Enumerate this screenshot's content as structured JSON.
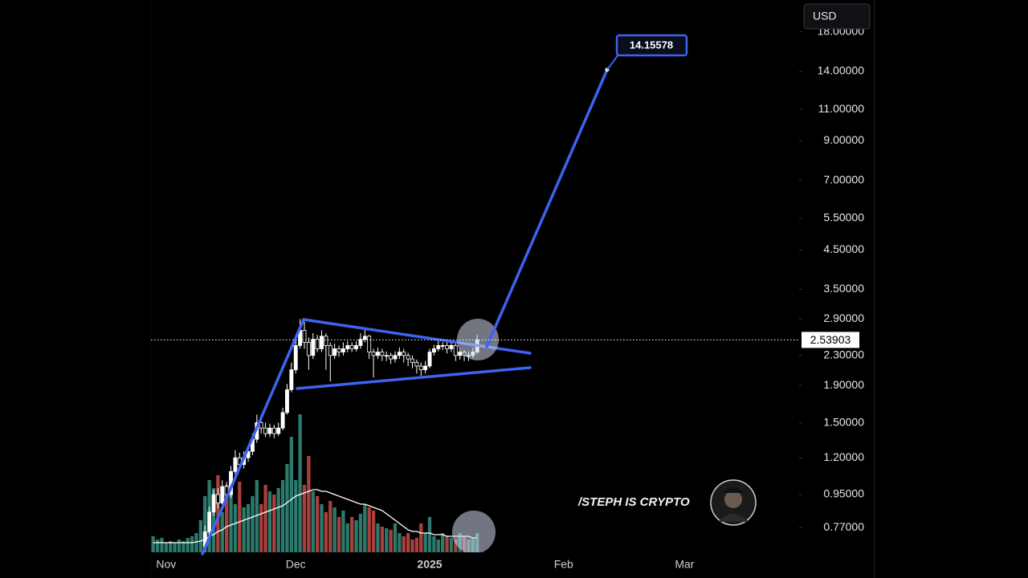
{
  "chart_data": {
    "type": "candlestick",
    "currency": "USD",
    "watermark": "/STEPH IS CRYPTO",
    "log_scale": true,
    "ylim": [
      0.658,
      22.04
    ],
    "yticks": [
      {
        "value": 18,
        "label": "18.00000"
      },
      {
        "value": 14,
        "label": "14.00000"
      },
      {
        "value": 11,
        "label": "11.00000"
      },
      {
        "value": 9,
        "label": "9.00000"
      },
      {
        "value": 7,
        "label": "7.00000"
      },
      {
        "value": 5.5,
        "label": "5.50000"
      },
      {
        "value": 4.5,
        "label": "4.50000"
      },
      {
        "value": 3.5,
        "label": "3.50000"
      },
      {
        "value": 2.9,
        "label": "2.90000"
      },
      {
        "value": 2.3,
        "label": "2.30000"
      },
      {
        "value": 1.9,
        "label": "1.90000"
      },
      {
        "value": 1.5,
        "label": "1.50000"
      },
      {
        "value": 1.2,
        "label": "1.20000"
      },
      {
        "value": 0.95,
        "label": "0.95000"
      },
      {
        "value": 0.77,
        "label": "0.77000"
      }
    ],
    "last_price": 2.53903,
    "target": 14.15578,
    "candle_color": "#ffffff",
    "drawing_color": "#3d63f0",
    "volume_colors": {
      "up": "#2b7a6b",
      "down": "#a8413d"
    },
    "volume_lim": [
      0,
      100
    ],
    "categories": [
      null,
      null,
      null,
      "Nov",
      null,
      null,
      null,
      null,
      null,
      null,
      null,
      null,
      null,
      null,
      null,
      null,
      null,
      null,
      null,
      null,
      null,
      null,
      null,
      null,
      null,
      null,
      null,
      null,
      null,
      null,
      null,
      null,
      null,
      "Dec",
      null,
      null,
      null,
      null,
      null,
      null,
      null,
      null,
      null,
      null,
      null,
      null,
      null,
      null,
      null,
      null,
      null,
      null,
      null,
      null,
      null,
      null,
      null,
      null,
      null,
      null,
      null,
      null,
      null,
      null,
      "2025",
      null,
      null,
      null,
      null,
      null,
      null,
      null,
      null,
      null,
      null,
      null,
      null,
      null,
      null,
      null,
      null,
      null,
      null,
      null,
      null,
      null,
      null,
      null,
      null,
      null,
      null,
      null,
      null,
      null,
      null,
      "Feb",
      null,
      null,
      null,
      null,
      null,
      null,
      null,
      null,
      null,
      null,
      null,
      null,
      null,
      null,
      null,
      null,
      null,
      null,
      null,
      null,
      null,
      null,
      null,
      null,
      null,
      null,
      null,
      "Mar",
      null,
      null,
      null,
      null,
      null,
      null,
      null,
      null,
      null,
      null,
      null,
      null,
      null,
      null,
      null,
      null,
      null,
      null,
      null,
      null,
      null,
      null,
      null,
      null,
      null,
      null
    ],
    "open": [
      null,
      null,
      null,
      null,
      null,
      null,
      null,
      null,
      null,
      null,
      null,
      null,
      0.68,
      0.75,
      0.85,
      0.95,
      0.9,
      1.0,
      0.95,
      1.1,
      1.2,
      1.15,
      1.2,
      1.25,
      1.35,
      1.5,
      1.45,
      1.4,
      1.45,
      1.4,
      1.45,
      1.6,
      1.85,
      2.1,
      2.45,
      2.7,
      2.5,
      2.3,
      2.55,
      2.4,
      2.6,
      2.45,
      2.3,
      2.4,
      2.35,
      2.4,
      2.45,
      2.4,
      2.45,
      2.55,
      2.6,
      2.35,
      2.3,
      2.35,
      2.3,
      2.3,
      2.25,
      2.3,
      2.35,
      2.3,
      2.25,
      2.2,
      2.15,
      2.1,
      2.15,
      2.35,
      2.4,
      2.45,
      2.45,
      2.4,
      2.45,
      2.3,
      2.35,
      2.3,
      2.3,
      2.35,
      null,
      null,
      null,
      null,
      null,
      null,
      null,
      null,
      null,
      null,
      null,
      null,
      null,
      null,
      null,
      null,
      null,
      null,
      null,
      null,
      null,
      null,
      null,
      null,
      null,
      null,
      null,
      null,
      null,
      null,
      null,
      null,
      null,
      null,
      null,
      null,
      null,
      null,
      null,
      null,
      null,
      null,
      null,
      null,
      null,
      null,
      null,
      null,
      null,
      null,
      null,
      null,
      null,
      null,
      null,
      null,
      null,
      null,
      null,
      null,
      null,
      null,
      null,
      null,
      null,
      null,
      null,
      null,
      null,
      null,
      null,
      null,
      null,
      null
    ],
    "high": [
      null,
      null,
      null,
      null,
      null,
      null,
      null,
      null,
      null,
      null,
      null,
      null,
      0.78,
      0.88,
      0.98,
      0.99,
      1.04,
      1.03,
      1.14,
      1.26,
      1.24,
      1.25,
      1.3,
      1.4,
      1.58,
      1.55,
      1.5,
      1.49,
      1.48,
      1.5,
      1.65,
      1.92,
      2.2,
      2.6,
      2.9,
      2.85,
      2.58,
      2.65,
      2.62,
      2.7,
      2.65,
      2.5,
      2.48,
      2.45,
      2.5,
      2.52,
      2.5,
      2.52,
      2.65,
      2.75,
      2.62,
      2.4,
      2.42,
      2.4,
      2.36,
      2.34,
      2.36,
      2.42,
      2.4,
      2.34,
      2.3,
      2.24,
      2.2,
      2.22,
      2.4,
      2.46,
      2.52,
      2.5,
      2.5,
      2.5,
      2.48,
      2.4,
      2.38,
      2.36,
      2.42,
      2.62,
      null,
      null,
      null,
      null,
      null,
      null,
      null,
      null,
      null,
      null,
      null,
      null,
      null,
      null,
      null,
      null,
      null,
      null,
      null,
      null,
      null,
      null,
      null,
      null,
      null,
      null,
      null,
      null,
      null,
      null,
      null,
      null,
      null,
      null,
      null,
      null,
      null,
      null,
      null,
      null,
      null,
      null,
      null,
      null,
      null,
      null,
      null,
      null,
      null,
      null,
      null,
      null,
      null,
      null,
      null,
      null,
      null,
      null,
      null,
      null,
      null,
      null,
      null,
      null,
      null,
      null,
      null,
      null,
      null,
      null,
      null,
      null,
      null,
      null
    ],
    "low": [
      null,
      null,
      null,
      null,
      null,
      null,
      null,
      null,
      null,
      null,
      null,
      null,
      0.66,
      0.73,
      0.83,
      0.87,
      0.88,
      0.92,
      0.93,
      1.07,
      1.12,
      1.12,
      1.17,
      1.22,
      1.32,
      1.4,
      1.37,
      1.37,
      1.36,
      1.38,
      1.43,
      1.58,
      1.82,
      2.05,
      2.4,
      2.4,
      2.1,
      2.25,
      2.35,
      2.35,
      2.1,
      1.95,
      2.25,
      2.28,
      2.3,
      2.35,
      2.35,
      2.36,
      2.4,
      2.5,
      2.25,
      2.0,
      2.25,
      2.22,
      2.22,
      2.18,
      2.2,
      2.25,
      2.2,
      2.15,
      2.12,
      2.05,
      2.02,
      2.05,
      2.12,
      2.3,
      2.36,
      2.38,
      2.33,
      2.35,
      2.22,
      2.24,
      2.22,
      2.22,
      2.26,
      2.32,
      null,
      null,
      null,
      null,
      null,
      null,
      null,
      null,
      null,
      null,
      null,
      null,
      null,
      null,
      null,
      null,
      null,
      null,
      null,
      null,
      null,
      null,
      null,
      null,
      null,
      null,
      null,
      null,
      null,
      null,
      null,
      null,
      null,
      null,
      null,
      null,
      null,
      null,
      null,
      null,
      null,
      null,
      null,
      null,
      null,
      null,
      null,
      null,
      null,
      null,
      null,
      null,
      null,
      null,
      null,
      null,
      null,
      null,
      null,
      null,
      null,
      null,
      null,
      null,
      null,
      null,
      null,
      null,
      null,
      null,
      null,
      null,
      null,
      null
    ],
    "close": [
      null,
      null,
      null,
      null,
      null,
      null,
      null,
      null,
      null,
      null,
      null,
      null,
      0.75,
      0.85,
      0.95,
      0.9,
      1.0,
      0.95,
      1.1,
      1.2,
      1.15,
      1.2,
      1.25,
      1.35,
      1.5,
      1.45,
      1.4,
      1.45,
      1.4,
      1.45,
      1.6,
      1.85,
      2.1,
      2.45,
      2.7,
      2.5,
      2.3,
      2.55,
      2.4,
      2.6,
      2.45,
      2.3,
      2.4,
      2.35,
      2.4,
      2.45,
      2.4,
      2.45,
      2.55,
      2.6,
      2.35,
      2.3,
      2.35,
      2.3,
      2.3,
      2.25,
      2.3,
      2.35,
      2.3,
      2.25,
      2.2,
      2.15,
      2.1,
      2.15,
      2.35,
      2.4,
      2.45,
      2.45,
      2.4,
      2.45,
      2.3,
      2.35,
      2.3,
      2.3,
      2.35,
      2.539,
      null,
      null,
      null,
      null,
      null,
      null,
      null,
      null,
      null,
      null,
      null,
      null,
      null,
      null,
      null,
      null,
      null,
      null,
      null,
      null,
      null,
      null,
      null,
      null,
      null,
      null,
      null,
      null,
      null,
      null,
      null,
      null,
      null,
      null,
      null,
      null,
      null,
      null,
      null,
      null,
      null,
      null,
      null,
      null,
      null,
      null,
      null,
      null,
      null,
      null,
      null,
      null,
      null,
      null,
      null,
      null,
      null,
      null,
      null,
      null,
      null,
      null,
      null,
      null,
      null,
      null,
      null,
      null,
      null,
      null,
      null,
      null,
      null,
      null
    ],
    "volume": [
      10,
      8,
      9,
      6,
      7,
      6,
      8,
      7,
      9,
      10,
      12,
      20,
      35,
      45,
      40,
      48,
      25,
      42,
      38,
      30,
      44,
      28,
      30,
      35,
      45,
      30,
      42,
      38,
      36,
      40,
      45,
      55,
      72,
      45,
      86,
      42,
      60,
      38,
      35,
      30,
      25,
      32,
      28,
      22,
      26,
      18,
      22,
      20,
      24,
      30,
      28,
      26,
      18,
      16,
      15,
      14,
      18,
      12,
      10,
      12,
      8,
      9,
      18,
      12,
      22,
      10,
      8,
      12,
      10,
      9,
      8,
      12,
      10,
      8,
      9,
      12,
      null,
      null,
      null,
      null,
      null,
      null,
      null,
      null,
      null,
      null,
      null,
      null,
      null,
      null,
      null,
      null,
      null,
      null,
      null,
      null,
      null,
      null,
      null,
      null,
      null,
      null,
      null,
      null,
      null,
      null,
      null,
      null,
      null,
      null,
      null,
      null,
      null,
      null,
      null,
      null,
      null,
      null,
      null,
      null,
      null,
      null,
      null,
      null,
      null,
      null,
      null,
      null,
      null,
      null,
      null,
      null,
      null,
      null,
      null,
      null,
      null,
      null,
      null,
      null,
      null,
      null,
      null,
      null,
      null,
      null,
      null,
      null,
      null,
      null
    ],
    "volume_ma": [
      6,
      6,
      6,
      6,
      6,
      6,
      6,
      6,
      6,
      6,
      6.5,
      7,
      8,
      10,
      11,
      13,
      14,
      16,
      17,
      18,
      19,
      20,
      21,
      22,
      23,
      24,
      25,
      26,
      27,
      28,
      29,
      31,
      33,
      35,
      36,
      37,
      38,
      39,
      39,
      38,
      38,
      37,
      36,
      35,
      34,
      33,
      32,
      31,
      30,
      30,
      29,
      28,
      27,
      26,
      24,
      22,
      20,
      18,
      16,
      14,
      13,
      13,
      12,
      12,
      12,
      11,
      11,
      11,
      10,
      10,
      10,
      10,
      10,
      10,
      9,
      9,
      null,
      null,
      null,
      null,
      null,
      null,
      null,
      null,
      null,
      null,
      null,
      null,
      null,
      null,
      null,
      null,
      null,
      null,
      null,
      null,
      null,
      null,
      null,
      null,
      null,
      null,
      null,
      null,
      null,
      null,
      null,
      null,
      null,
      null,
      null,
      null,
      null,
      null,
      null,
      null,
      null,
      null,
      null,
      null,
      null,
      null,
      null,
      null,
      null,
      null,
      null,
      null,
      null,
      null,
      null,
      null,
      null,
      null,
      null,
      null,
      null,
      null,
      null,
      null,
      null,
      null,
      null,
      null,
      null,
      null,
      null,
      null,
      null,
      null
    ]
  }
}
